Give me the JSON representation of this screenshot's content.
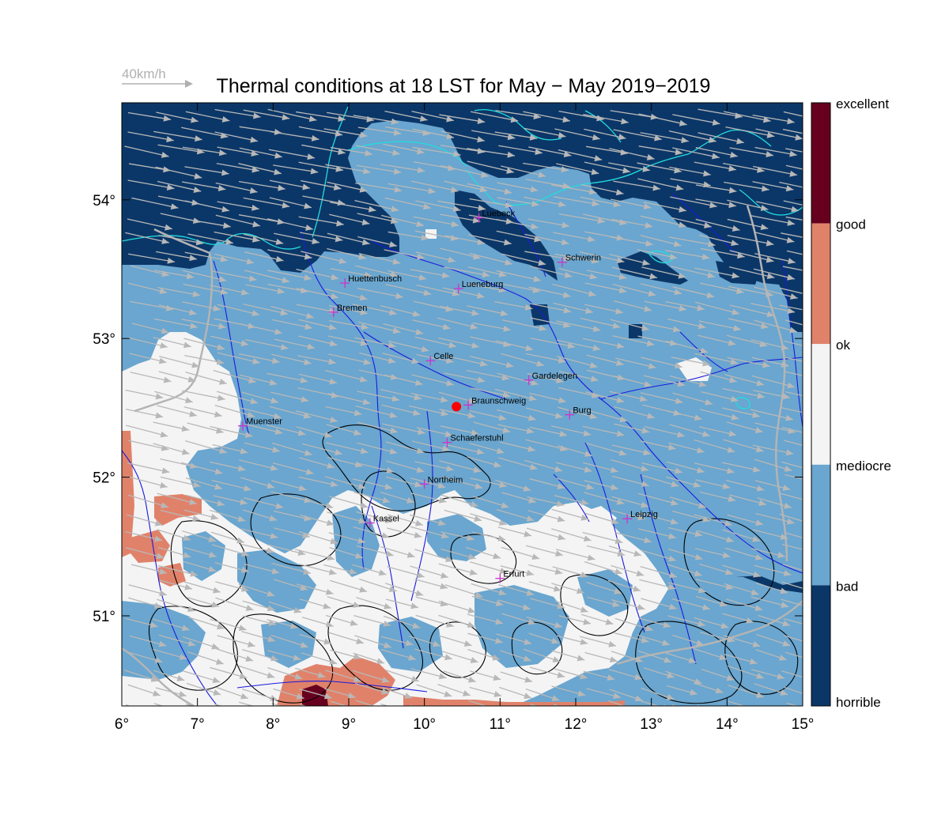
{
  "title": "Thermal conditions at 18 LST for May − May  2019−2019",
  "wind_reference": {
    "label": "40km/h",
    "speed_kmh": 40
  },
  "map": {
    "lon_range": [
      6,
      15
    ],
    "lat_range": [
      50.35,
      54.7
    ],
    "lon_ticks": [
      {
        "value": 6,
        "label": "6°"
      },
      {
        "value": 7,
        "label": "7°"
      },
      {
        "value": 8,
        "label": "8°"
      },
      {
        "value": 9,
        "label": "9°"
      },
      {
        "value": 10,
        "label": "10°"
      },
      {
        "value": 11,
        "label": "11°"
      },
      {
        "value": 12,
        "label": "12°"
      },
      {
        "value": 13,
        "label": "13°"
      },
      {
        "value": 14,
        "label": "14°"
      },
      {
        "value": 15,
        "label": "15°"
      }
    ],
    "lat_ticks": [
      {
        "value": 51,
        "label": "51°"
      },
      {
        "value": 52,
        "label": "52°"
      },
      {
        "value": 53,
        "label": "53°"
      },
      {
        "value": 54,
        "label": "54°"
      }
    ],
    "highlight_site": {
      "name": "Braunschweig",
      "lon": 10.58,
      "lat": 52.52,
      "color": "#ff0000"
    },
    "cities": [
      {
        "name": "Luebeck",
        "lon": 10.72,
        "lat": 53.87
      },
      {
        "name": "Schwerin",
        "lon": 11.82,
        "lat": 53.55
      },
      {
        "name": "Huettenbusch",
        "lon": 8.95,
        "lat": 53.4
      },
      {
        "name": "Lueneburg",
        "lon": 10.45,
        "lat": 53.36
      },
      {
        "name": "Bremen",
        "lon": 8.8,
        "lat": 53.19
      },
      {
        "name": "Celle",
        "lon": 10.08,
        "lat": 52.84
      },
      {
        "name": "Gardelegen",
        "lon": 11.38,
        "lat": 52.7
      },
      {
        "name": "Braunschweig",
        "lon": 10.58,
        "lat": 52.52
      },
      {
        "name": "Burg",
        "lon": 11.92,
        "lat": 52.45
      },
      {
        "name": "Muenster",
        "lon": 7.6,
        "lat": 52.37
      },
      {
        "name": "Schaeferstuhl",
        "lon": 10.3,
        "lat": 52.25
      },
      {
        "name": "Northeim",
        "lon": 10.0,
        "lat": 51.95
      },
      {
        "name": "Kassel",
        "lon": 9.28,
        "lat": 51.67
      },
      {
        "name": "Leipzig",
        "lon": 12.68,
        "lat": 51.7
      },
      {
        "name": "Erfurt",
        "lon": 11.0,
        "lat": 51.27
      }
    ]
  },
  "legend": {
    "classes": [
      {
        "label": "excellent",
        "color": "#67001f"
      },
      {
        "label": "good",
        "color": "#e0826a"
      },
      {
        "label": "ok",
        "color": "#f4f4f4"
      },
      {
        "label": "mediocre",
        "color": "#f4f4f4"
      },
      {
        "label": "bad",
        "color": "#6aa6cf"
      },
      {
        "label": "horrible",
        "color": "#0b3768"
      }
    ]
  },
  "colors": {
    "horrible": "#0b3768",
    "bad": "#6aa6cf",
    "mediocre": "#f4f4f4",
    "good": "#e0826a",
    "excellent": "#67001f",
    "coast": "#22dddd",
    "rivers": "#1a1adf",
    "contours": "#000000",
    "borders": "#b4b4b4",
    "wind_vectors": "#b8b8b8",
    "city_marker": "#cc33cc"
  }
}
